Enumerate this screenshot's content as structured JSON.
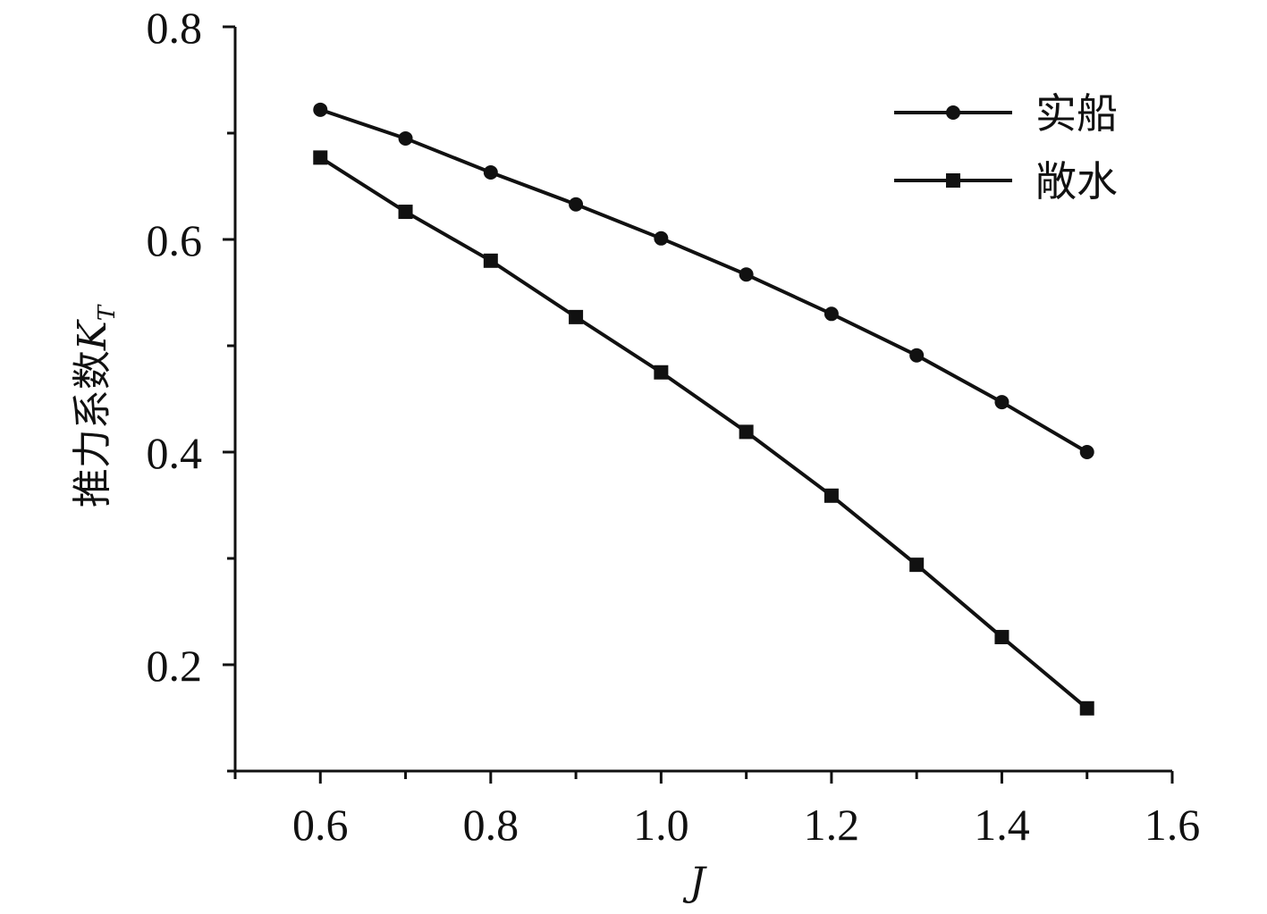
{
  "chart_data": {
    "type": "line",
    "xlabel": "J",
    "ylabel": {
      "main": "推力系数",
      "symbol": "K",
      "subscript": "T"
    },
    "xlim": [
      0.5,
      1.6
    ],
    "ylim": [
      0.1,
      0.8
    ],
    "x_ticks": [
      "0.6",
      "0.8",
      "1.0",
      "1.2",
      "1.4",
      "1.6"
    ],
    "y_ticks": [
      "0.2",
      "0.4",
      "0.6",
      "0.8"
    ],
    "x": [
      0.6,
      0.7,
      0.8,
      0.9,
      1.0,
      1.1,
      1.2,
      1.3,
      1.4,
      1.5
    ],
    "series": [
      {
        "name": "实船",
        "marker": "circle",
        "values": [
          0.722,
          0.695,
          0.663,
          0.633,
          0.601,
          0.567,
          0.53,
          0.491,
          0.447,
          0.4
        ]
      },
      {
        "name": "敞水",
        "marker": "square",
        "values": [
          0.677,
          0.626,
          0.58,
          0.527,
          0.475,
          0.419,
          0.359,
          0.294,
          0.226,
          0.159
        ]
      }
    ],
    "legend_position": "top-right",
    "grid": false
  }
}
